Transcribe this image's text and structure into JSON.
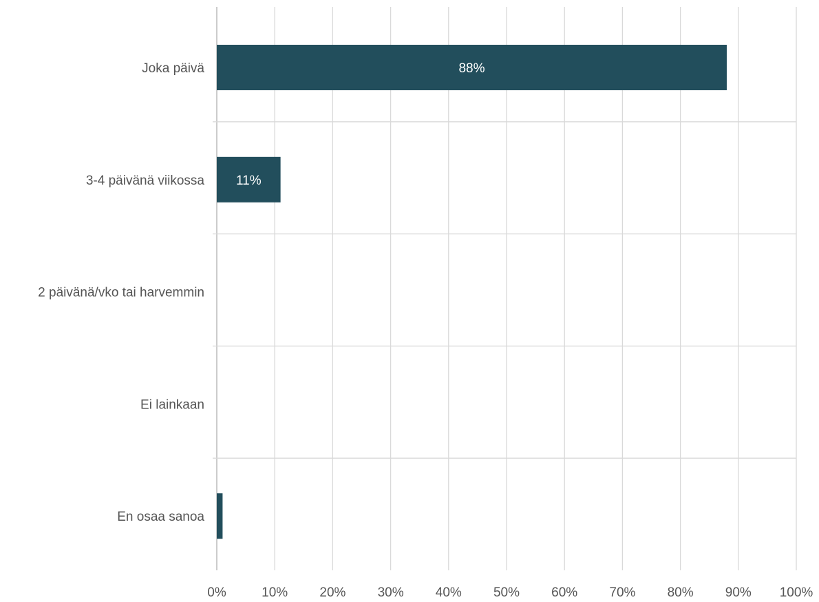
{
  "chart_data": {
    "type": "bar",
    "orientation": "horizontal",
    "title": "",
    "xlabel": "",
    "ylabel": "",
    "categories": [
      "Joka päivä",
      "3-4 päivänä viikossa",
      "2 päivänä/vko tai harvemmin",
      "Ei lainkaan",
      "En osaa sanoa"
    ],
    "values": [
      88,
      11,
      0,
      0,
      1
    ],
    "data_labels": [
      "88%",
      "11%",
      "",
      "",
      ""
    ],
    "x_ticks": [
      "0%",
      "10%",
      "20%",
      "30%",
      "40%",
      "50%",
      "60%",
      "70%",
      "80%",
      "90%",
      "100%"
    ],
    "xlim": [
      0,
      100
    ],
    "grid": true,
    "legend": "none",
    "bar_color": "#224e5c",
    "grid_color": "#d9d9d9"
  }
}
